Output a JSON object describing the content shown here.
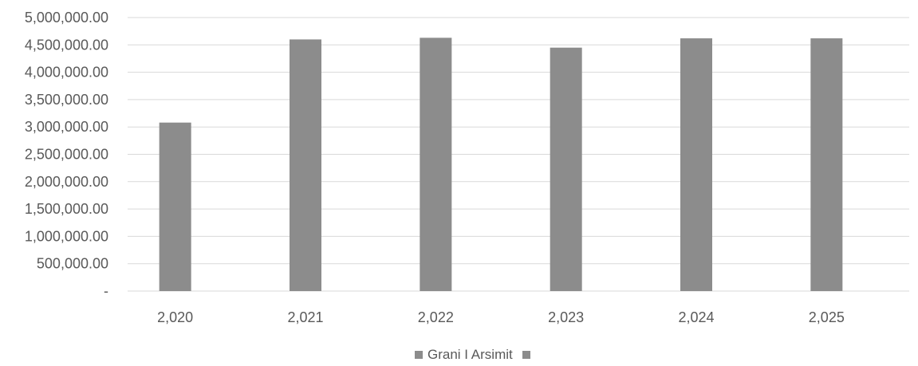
{
  "chart_data": {
    "type": "bar",
    "categories": [
      "2,020",
      "2,021",
      "2,022",
      "2,023",
      "2,024",
      "2,025"
    ],
    "series": [
      {
        "name": "Grani I Arsimit",
        "values": [
          3080000,
          4600000,
          4630000,
          4450000,
          4620000,
          4620000
        ]
      }
    ],
    "ylim": [
      0,
      5000000
    ],
    "y_tick_values": [
      0,
      500000,
      1000000,
      1500000,
      2000000,
      2500000,
      3000000,
      3500000,
      4000000,
      4500000,
      5000000
    ],
    "y_tick_labels": [
      "-",
      "500,000.00",
      "1,000,000.00",
      "1,500,000.00",
      "2,000,000.00",
      "2,500,000.00",
      "3,000,000.00",
      "3,500,000.00",
      "4,000,000.00",
      "4,500,000.00",
      "5,000,000.00"
    ],
    "grid": true,
    "legend_position": "bottom",
    "legend_entries": [
      "Grani I Arsimit",
      ""
    ],
    "colors": {
      "bar": "#8c8c8c",
      "grid": "#d9d9d9",
      "text": "#595959"
    }
  }
}
